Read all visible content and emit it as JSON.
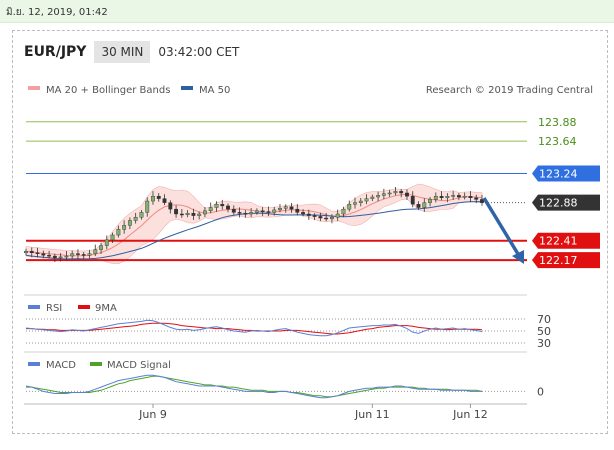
{
  "datestamp": "มิ.ย. 12, 2019, 01:42",
  "header": {
    "pair": "EUR/JPY",
    "timeframe": "30 MIN",
    "time": "03:42:00 CET"
  },
  "legend": {
    "ma20": "MA 20 + Bollinger Bands",
    "ma50": "MA 50",
    "credit": "Research © 2019 Trading Central"
  },
  "rsi_legend": {
    "rsi": "RSI",
    "ma9": "9MA"
  },
  "macd_legend": {
    "macd": "MACD",
    "signal": "MACD Signal"
  },
  "colors": {
    "blue_level": "#2f6fe0",
    "red_level": "#e01010",
    "green_level": "#8fbf4f",
    "current": "#333333",
    "arrow": "#2f64a8"
  },
  "chart_data": {
    "type": "candlestick",
    "ylim": [
      121.85,
      124.05
    ],
    "x_ticks": [
      "Jun 9",
      "Jun 11",
      "Jun 12"
    ],
    "levels": [
      {
        "value": 123.88,
        "label": "123.88",
        "kind": "green"
      },
      {
        "value": 123.64,
        "label": "123.64",
        "kind": "green"
      },
      {
        "value": 123.24,
        "label": "123.24",
        "kind": "blue"
      },
      {
        "value": 122.88,
        "label": "122.88",
        "kind": "current"
      },
      {
        "value": 122.41,
        "label": "122.41",
        "kind": "red"
      },
      {
        "value": 122.17,
        "label": "122.17",
        "kind": "red"
      }
    ],
    "closes": [
      122.28,
      122.26,
      122.25,
      122.23,
      122.22,
      122.2,
      122.21,
      122.22,
      122.25,
      122.24,
      122.23,
      122.25,
      122.3,
      122.35,
      122.42,
      122.48,
      122.55,
      122.6,
      122.66,
      122.7,
      122.76,
      122.9,
      122.96,
      122.93,
      122.88,
      122.8,
      122.74,
      122.73,
      122.75,
      122.72,
      122.74,
      122.78,
      122.82,
      122.86,
      122.84,
      122.8,
      122.76,
      122.75,
      122.74,
      122.76,
      122.78,
      122.77,
      122.76,
      122.79,
      122.81,
      122.83,
      122.8,
      122.76,
      122.74,
      122.72,
      122.71,
      122.69,
      122.68,
      122.7,
      122.74,
      122.8,
      122.86,
      122.88,
      122.9,
      122.93,
      122.95,
      122.97,
      122.99,
      123.0,
      123.02,
      123.0,
      122.96,
      122.86,
      122.82,
      122.88,
      122.92,
      122.96,
      122.94,
      122.96,
      122.97,
      122.95,
      122.96,
      122.94,
      122.92,
      122.88
    ],
    "rsi_levels": [
      70,
      50,
      30
    ],
    "macd_levels": [
      0
    ],
    "rsi": [
      55,
      54,
      53,
      52,
      51,
      50,
      49,
      50,
      52,
      51,
      50,
      52,
      54,
      56,
      58,
      60,
      62,
      63,
      64,
      65,
      66,
      68,
      67,
      64,
      60,
      56,
      53,
      52,
      53,
      51,
      52,
      54,
      56,
      57,
      55,
      52,
      50,
      49,
      48,
      50,
      51,
      50,
      49,
      51,
      53,
      54,
      51,
      48,
      46,
      44,
      43,
      42,
      42,
      44,
      47,
      51,
      55,
      56,
      57,
      58,
      59,
      59,
      60,
      60,
      61,
      58,
      54,
      48,
      46,
      50,
      53,
      55,
      53,
      54,
      55,
      53,
      54,
      52,
      51,
      49
    ],
    "rsi_ma": [
      54,
      54,
      53,
      53,
      52,
      52,
      51,
      51,
      51,
      51,
      51,
      51,
      52,
      53,
      54,
      55,
      56,
      57,
      58,
      59,
      61,
      62,
      63,
      63,
      63,
      62,
      61,
      59,
      58,
      57,
      56,
      55,
      55,
      54,
      54,
      54,
      53,
      52,
      51,
      51,
      50,
      50,
      50,
      50,
      50,
      51,
      51,
      51,
      50,
      49,
      48,
      47,
      46,
      45,
      45,
      46,
      47,
      49,
      51,
      53,
      54,
      56,
      57,
      58,
      59,
      59,
      59,
      58,
      56,
      55,
      54,
      53,
      53,
      52,
      53,
      53,
      53,
      53,
      53,
      52
    ],
    "macd": [
      0.05,
      0.04,
      0.02,
      0.0,
      -0.01,
      -0.02,
      -0.02,
      -0.02,
      -0.01,
      -0.01,
      -0.01,
      0.0,
      0.02,
      0.04,
      0.06,
      0.08,
      0.1,
      0.11,
      0.12,
      0.13,
      0.14,
      0.15,
      0.15,
      0.14,
      0.13,
      0.11,
      0.09,
      0.08,
      0.07,
      0.06,
      0.05,
      0.05,
      0.05,
      0.05,
      0.04,
      0.03,
      0.02,
      0.01,
      0.0,
      0.0,
      0.0,
      0.0,
      -0.01,
      -0.01,
      0.0,
      0.0,
      -0.01,
      -0.02,
      -0.03,
      -0.04,
      -0.05,
      -0.06,
      -0.06,
      -0.05,
      -0.04,
      -0.02,
      0.0,
      0.01,
      0.02,
      0.03,
      0.03,
      0.04,
      0.04,
      0.04,
      0.05,
      0.05,
      0.04,
      0.03,
      0.02,
      0.02,
      0.02,
      0.02,
      0.01,
      0.01,
      0.01,
      0.01,
      0.01,
      0.0,
      0.0,
      0.0
    ],
    "macd_signal": [
      0.04,
      0.04,
      0.03,
      0.02,
      0.01,
      0.0,
      -0.01,
      -0.01,
      -0.01,
      -0.01,
      -0.01,
      -0.01,
      0.0,
      0.01,
      0.03,
      0.05,
      0.07,
      0.08,
      0.1,
      0.11,
      0.12,
      0.13,
      0.14,
      0.14,
      0.13,
      0.12,
      0.11,
      0.1,
      0.09,
      0.08,
      0.07,
      0.06,
      0.06,
      0.05,
      0.05,
      0.04,
      0.04,
      0.03,
      0.02,
      0.01,
      0.01,
      0.01,
      0.0,
      0.0,
      0.0,
      0.0,
      -0.01,
      -0.01,
      -0.02,
      -0.03,
      -0.04,
      -0.04,
      -0.05,
      -0.05,
      -0.04,
      -0.03,
      -0.02,
      -0.01,
      0.0,
      0.01,
      0.02,
      0.03,
      0.03,
      0.04,
      0.04,
      0.04,
      0.04,
      0.04,
      0.03,
      0.03,
      0.02,
      0.02,
      0.02,
      0.02,
      0.01,
      0.01,
      0.01,
      0.01,
      0.01,
      0.0
    ]
  }
}
